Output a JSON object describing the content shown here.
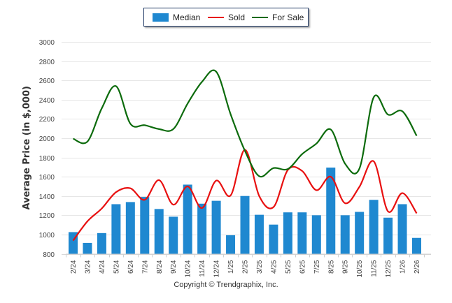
{
  "chart_data": {
    "type": "bar+line",
    "title": "",
    "xlabel": "",
    "ylabel": "Average Price (in $,000)",
    "ylim": [
      800,
      3000
    ],
    "yticks": [
      800,
      1000,
      1200,
      1400,
      1600,
      1800,
      2000,
      2200,
      2400,
      2600,
      2800,
      3000
    ],
    "grid": true,
    "legend_position": "top-center",
    "categories": [
      "2/24",
      "3/24",
      "4/24",
      "5/24",
      "6/24",
      "7/24",
      "8/24",
      "9/24",
      "10/24",
      "11/24",
      "12/24",
      "1/25",
      "2/25",
      "3/25",
      "4/25",
      "5/25",
      "6/25",
      "7/25",
      "8/25",
      "9/25",
      "10/25",
      "11/25",
      "12/25",
      "1/26",
      "2/26"
    ],
    "series": [
      {
        "name": "Median",
        "type": "bar",
        "color": "#1f88d0",
        "values": [
          1025,
          913,
          1015,
          1315,
          1337,
          1390,
          1265,
          1185,
          1518,
          1320,
          1350,
          993,
          1400,
          1205,
          1103,
          1230,
          1230,
          1200,
          1695,
          1200,
          1235,
          1360,
          1175,
          1315,
          965
        ]
      },
      {
        "name": "Sold",
        "type": "line",
        "color": "#e81010",
        "values": [
          937,
          1137,
          1270,
          1440,
          1480,
          1360,
          1565,
          1310,
          1500,
          1275,
          1560,
          1405,
          1880,
          1400,
          1285,
          1670,
          1660,
          1460,
          1600,
          1325,
          1495,
          1760,
          1240,
          1430,
          1220
        ]
      },
      {
        "name": "For Sale",
        "type": "line",
        "color": "#0c6b0c",
        "values": [
          1995,
          1965,
          2310,
          2540,
          2150,
          2135,
          2095,
          2095,
          2360,
          2585,
          2690,
          2250,
          1870,
          1605,
          1690,
          1680,
          1835,
          1945,
          2090,
          1735,
          1685,
          2425,
          2245,
          2280,
          2025
        ]
      }
    ]
  },
  "legend": {
    "items": [
      {
        "label": "Median",
        "color": "#1f88d0"
      },
      {
        "label": "Sold",
        "color": "#e81010"
      },
      {
        "label": "For Sale",
        "color": "#0c6b0c"
      }
    ]
  },
  "footer": {
    "copyright": "Copyright © Trendgraphix, Inc."
  }
}
